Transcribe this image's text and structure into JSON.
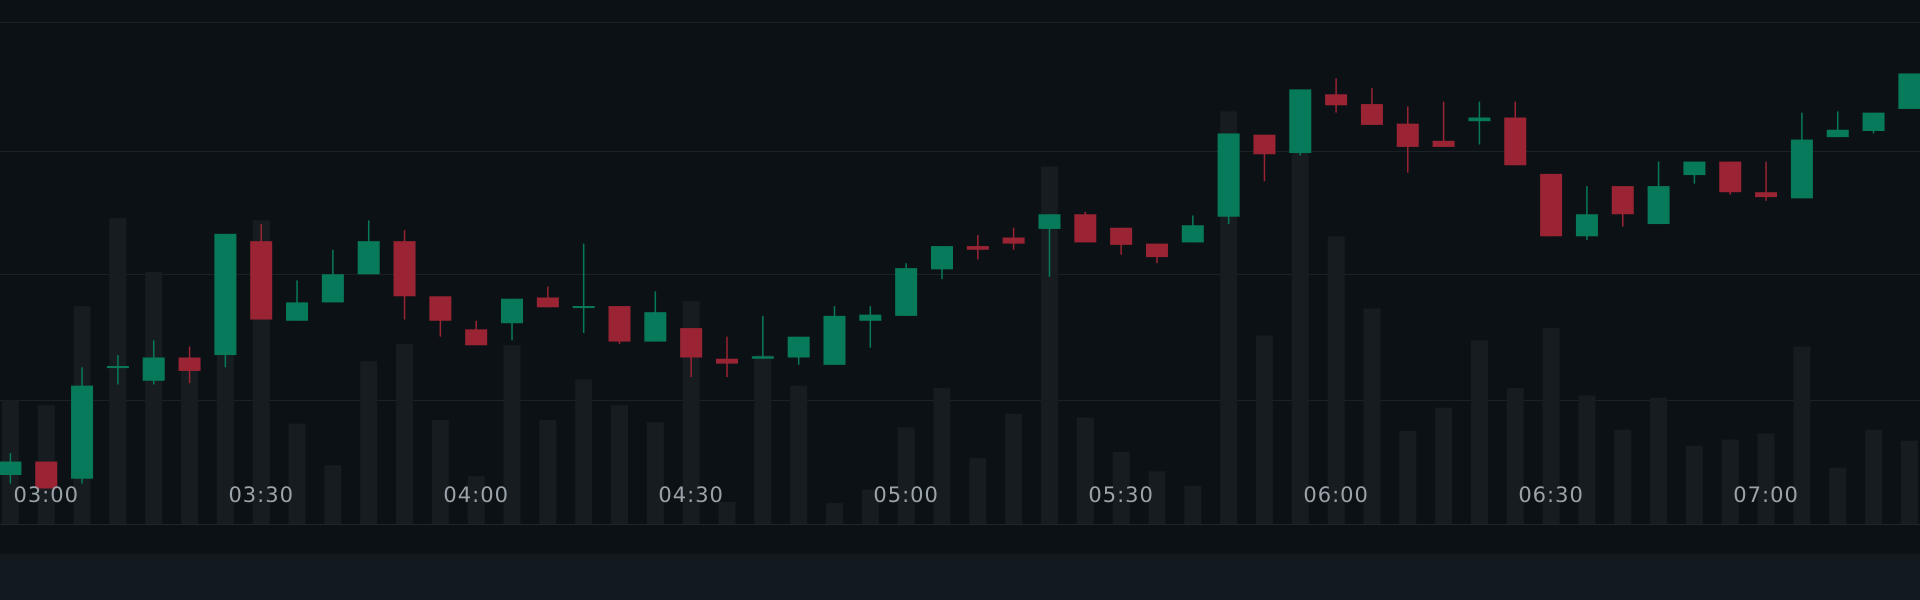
{
  "chart_data": {
    "type": "candlestick",
    "categories": [
      null,
      "03:00",
      null,
      null,
      null,
      null,
      null,
      "03:30",
      null,
      null,
      null,
      null,
      null,
      "04:00",
      null,
      null,
      null,
      null,
      null,
      "04:30",
      null,
      null,
      null,
      null,
      null,
      "05:00",
      null,
      null,
      null,
      null,
      null,
      "05:30",
      null,
      null,
      null,
      null,
      null,
      "06:00",
      null,
      null,
      null,
      null,
      null,
      "06:30",
      null,
      null,
      null,
      null,
      null,
      "07:00",
      null,
      null,
      null,
      null
    ],
    "open": [
      42,
      53,
      39,
      130,
      119,
      138,
      140,
      233,
      168,
      183,
      206,
      233,
      188,
      161,
      166,
      187,
      179,
      180,
      151,
      162,
      137,
      137,
      138,
      132,
      168,
      172,
      210,
      229,
      236,
      243,
      255,
      244,
      231,
      232,
      253,
      320,
      305,
      353,
      345,
      329,
      315,
      331,
      334,
      288,
      237,
      278,
      247,
      287,
      298,
      273,
      268,
      318,
      323,
      341
    ],
    "high": [
      60,
      53,
      130,
      140,
      152,
      147,
      239,
      247,
      201,
      226,
      250,
      242,
      188,
      168,
      186,
      196,
      231,
      180,
      192,
      162,
      155,
      172,
      155,
      180,
      180,
      215,
      229,
      238,
      244,
      255,
      257,
      244,
      231,
      254,
      321,
      320,
      357,
      366,
      358,
      343,
      347,
      347,
      347,
      288,
      278,
      278,
      298,
      298,
      298,
      298,
      338,
      339,
      338,
      370
    ],
    "low": [
      35,
      31,
      35,
      116,
      116,
      117,
      130,
      169,
      168,
      183,
      206,
      169,
      155,
      148,
      152,
      179,
      158,
      149,
      151,
      122,
      122,
      137,
      132,
      132,
      146,
      172,
      202,
      218,
      226,
      204,
      232,
      222,
      215,
      232,
      247,
      282,
      303,
      338,
      328,
      289,
      310,
      312,
      295,
      237,
      234,
      245,
      247,
      280,
      271,
      266,
      268,
      318,
      321,
      341
    ],
    "close": [
      53,
      31,
      115,
      131,
      138,
      127,
      239,
      169,
      183,
      206,
      233,
      188,
      168,
      148,
      186,
      179,
      180,
      151,
      175,
      138,
      133,
      139,
      155,
      172,
      173,
      211,
      229,
      226,
      231,
      255,
      232,
      230,
      220,
      246,
      321,
      304,
      357,
      344,
      328,
      310,
      310,
      334,
      295,
      237,
      255,
      255,
      278,
      298,
      273,
      269,
      316,
      324,
      338,
      370
    ],
    "volume": [
      101,
      97,
      178,
      250,
      206,
      128,
      138,
      248,
      82,
      48,
      133,
      147,
      85,
      39,
      146,
      85,
      118,
      97,
      83,
      182,
      18,
      138,
      113,
      17,
      28,
      79,
      111,
      54,
      90,
      292,
      87,
      59,
      43,
      31,
      337,
      154,
      308,
      235,
      176,
      76,
      95,
      150,
      111,
      160,
      105,
      77,
      103,
      64,
      69,
      74,
      145,
      46,
      77,
      68
    ],
    "up_color": "#087a5c",
    "down_color": "#9a2433",
    "volume_color": "#171c20",
    "ylim": [
      2,
      430
    ],
    "volume_ylim": [
      0,
      428
    ],
    "gridlines": [
      103,
      206,
      307,
      412
    ]
  }
}
